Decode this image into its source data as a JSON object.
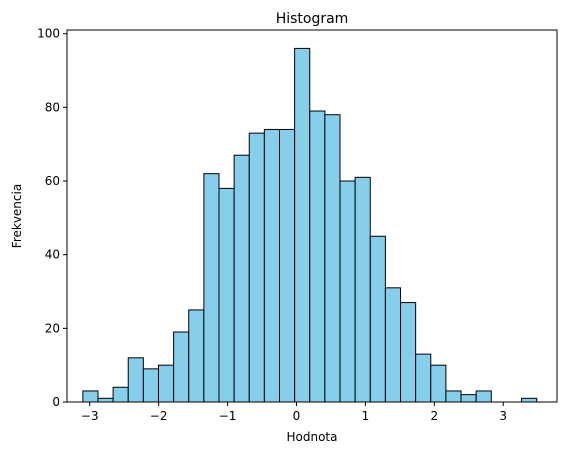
{
  "chart_data": {
    "type": "histogram",
    "title": "Histogram",
    "xlabel": "Hodnota",
    "ylabel": "Frekvencia",
    "xlim": [
      -3.33,
      3.78
    ],
    "ylim": [
      0,
      101
    ],
    "bin_start": -3.1,
    "bin_width": 0.2195,
    "counts": [
      3,
      1,
      4,
      12,
      9,
      10,
      19,
      25,
      62,
      58,
      67,
      73,
      74,
      74,
      96,
      79,
      78,
      60,
      61,
      45,
      31,
      27,
      13,
      10,
      3,
      2,
      3,
      0,
      0,
      1
    ],
    "x_ticks": [
      -3,
      -2,
      -1,
      0,
      1,
      2,
      3
    ],
    "x_tick_labels": [
      "−3",
      "−2",
      "−1",
      "0",
      "1",
      "2",
      "3"
    ],
    "y_ticks": [
      0,
      20,
      40,
      60,
      80,
      100
    ],
    "y_tick_labels": [
      "0",
      "20",
      "40",
      "60",
      "80",
      "100"
    ],
    "bar_color": "#87ceeb",
    "edge_color": "#000000",
    "grid": false
  }
}
